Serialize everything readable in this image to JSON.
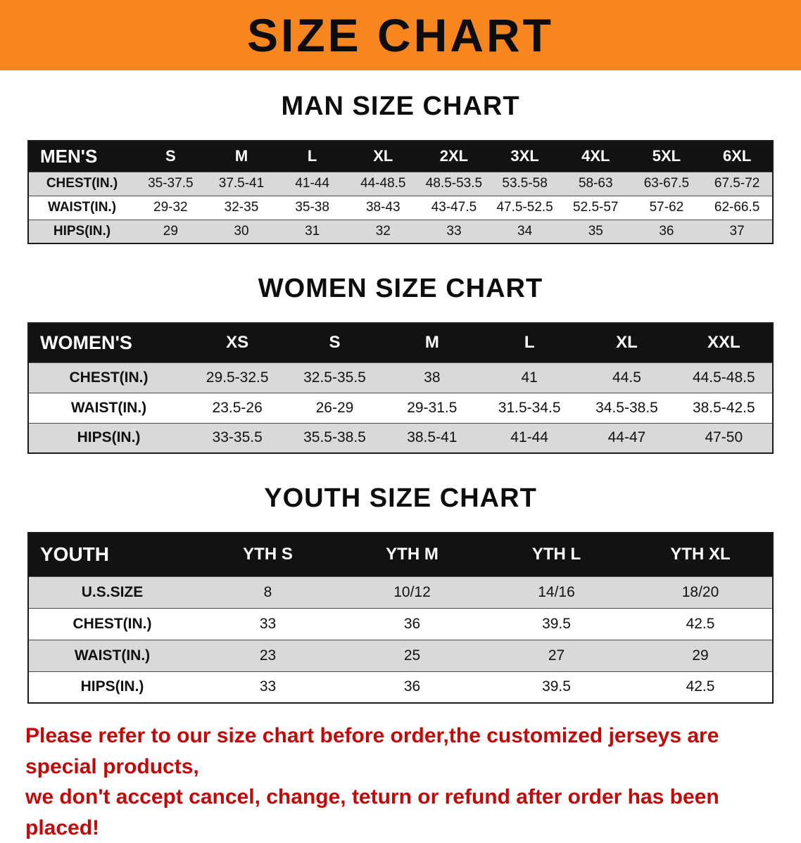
{
  "banner": {
    "title": "SIZE CHART"
  },
  "chart_data": [
    {
      "type": "table",
      "title": "MAN SIZE CHART",
      "corner": "MEN'S",
      "columns": [
        "S",
        "M",
        "L",
        "XL",
        "2XL",
        "3XL",
        "4XL",
        "5XL",
        "6XL"
      ],
      "rows": [
        {
          "label": "CHEST(IN.)",
          "values": [
            "35-37.5",
            "37.5-41",
            "41-44",
            "44-48.5",
            "48.5-53.5",
            "53.5-58",
            "58-63",
            "63-67.5",
            "67.5-72"
          ]
        },
        {
          "label": "WAIST(IN.)",
          "values": [
            "29-32",
            "32-35",
            "35-38",
            "38-43",
            "43-47.5",
            "47.5-52.5",
            "52.5-57",
            "57-62",
            "62-66.5"
          ]
        },
        {
          "label": "HIPS(IN.)",
          "values": [
            "29",
            "30",
            "31",
            "32",
            "33",
            "34",
            "35",
            "36",
            "37"
          ]
        }
      ]
    },
    {
      "type": "table",
      "title": "WOMEN SIZE CHART",
      "corner": "WOMEN'S",
      "columns": [
        "XS",
        "S",
        "M",
        "L",
        "XL",
        "XXL"
      ],
      "rows": [
        {
          "label": "CHEST(IN.)",
          "values": [
            "29.5-32.5",
            "32.5-35.5",
            "38",
            "41",
            "44.5",
            "44.5-48.5"
          ]
        },
        {
          "label": "WAIST(IN.)",
          "values": [
            "23.5-26",
            "26-29",
            "29-31.5",
            "31.5-34.5",
            "34.5-38.5",
            "38.5-42.5"
          ]
        },
        {
          "label": "HIPS(IN.)",
          "values": [
            "33-35.5",
            "35.5-38.5",
            "38.5-41",
            "41-44",
            "44-47",
            "47-50"
          ]
        }
      ]
    },
    {
      "type": "table",
      "title": "YOUTH SIZE CHART",
      "corner": "YOUTH",
      "columns": [
        "YTH S",
        "YTH M",
        "YTH L",
        "YTH XL"
      ],
      "rows": [
        {
          "label": "U.S.SIZE",
          "values": [
            "8",
            "10/12",
            "14/16",
            "18/20"
          ]
        },
        {
          "label": "CHEST(IN.)",
          "values": [
            "33",
            "36",
            "39.5",
            "42.5"
          ]
        },
        {
          "label": "WAIST(IN.)",
          "values": [
            "23",
            "25",
            "27",
            "29"
          ]
        },
        {
          "label": "HIPS(IN.)",
          "values": [
            "33",
            "36",
            "39.5",
            "42.5"
          ]
        }
      ]
    }
  ],
  "footer": {
    "line1": "Please refer to our size chart before order,the customized jerseys are special products,",
    "line2": "we don't accept cancel, change, teturn or refund after order has been placed!"
  },
  "colors": {
    "banner_bg": "#F6861D",
    "table_header_bg": "#121212",
    "row_stripe": "#D9D9D9",
    "footer_text": "#C00A0A"
  }
}
